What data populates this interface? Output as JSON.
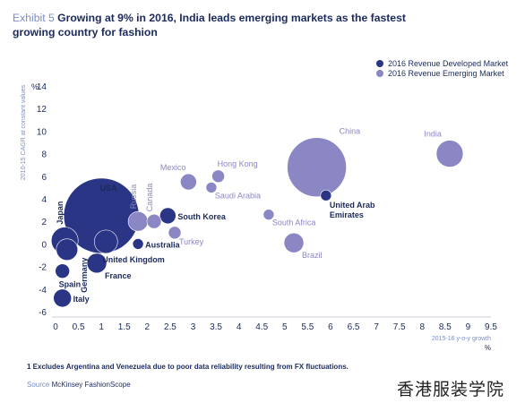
{
  "header": {
    "exhibit": "Exhibit 5",
    "title": "Growing at 9% in 2016, India leads emerging markets as the fastest growing country for fashion"
  },
  "colors": {
    "developed": "#2a3585",
    "emerging": "#8b86c4",
    "axis_text": "#1b2a5c"
  },
  "chart_data": {
    "type": "scatter",
    "xlabel": "2015-16 y-o-y growth",
    "xunit": "%",
    "ylabel": "2010-15 CAGR at constant values",
    "yunit": "%",
    "xlim": [
      0,
      9.5
    ],
    "ylim": [
      -6,
      14
    ],
    "x_ticks": [
      "0",
      "0.5",
      "1",
      "1.5",
      "2",
      "2.5",
      "3",
      "3.5",
      "4",
      "4.5",
      "5",
      "5.5",
      "6",
      "6.5",
      "7",
      "7.5",
      "8",
      "8.5",
      "9",
      "9.5"
    ],
    "y_ticks": [
      "14",
      "12",
      "10",
      "8",
      "6",
      "4",
      "2",
      "0",
      "-2",
      "-4",
      "-6"
    ],
    "legend": {
      "position": "top-right",
      "items": [
        {
          "label": "2016 Revenue Developed Market",
          "group": "developed"
        },
        {
          "label": "2016 Revenue Emerging Market",
          "group": "emerging"
        }
      ]
    },
    "points": [
      {
        "label": "USA",
        "x": 1.0,
        "y": 2.5,
        "size": 42,
        "group": "developed",
        "label_pos": "above"
      },
      {
        "label": "Japan",
        "x": 0.2,
        "y": 0.3,
        "size": 15,
        "group": "developed",
        "label_pos": "vertical"
      },
      {
        "label": "Germany",
        "x": 0.25,
        "y": -0.5,
        "size": 12,
        "group": "developed",
        "label_pos": "vertical-below"
      },
      {
        "label": "United Kingdom",
        "x": 1.1,
        "y": 0.2,
        "size": 13,
        "group": "developed",
        "label_pos": "below"
      },
      {
        "label": "France",
        "x": 0.9,
        "y": -1.7,
        "size": 11,
        "group": "developed",
        "label_pos": "below-right"
      },
      {
        "label": "Spain",
        "x": 0.15,
        "y": -2.4,
        "size": 8,
        "group": "developed",
        "label_pos": "below"
      },
      {
        "label": "Italy",
        "x": 0.15,
        "y": -4.8,
        "size": 10,
        "group": "developed",
        "label_pos": "right"
      },
      {
        "label": "Australia",
        "x": 1.8,
        "y": 0.0,
        "size": 6,
        "group": "developed",
        "label_pos": "right"
      },
      {
        "label": "South Korea",
        "x": 2.45,
        "y": 2.5,
        "size": 9,
        "group": "developed",
        "label_pos": "right"
      },
      {
        "label": "United Arab Emirates",
        "x": 5.9,
        "y": 4.3,
        "size": 6,
        "group": "developed",
        "label_pos": "below-right"
      },
      {
        "label": "Russia",
        "x": 1.8,
        "y": 2.0,
        "size": 11,
        "group": "emerging",
        "label_pos": "vertical"
      },
      {
        "label": "Canada",
        "x": 2.15,
        "y": 2.0,
        "size": 8,
        "group": "emerging",
        "label_pos": "vertical"
      },
      {
        "label": "Turkey",
        "x": 2.6,
        "y": 1.0,
        "size": 7,
        "group": "emerging",
        "label_pos": "below-right"
      },
      {
        "label": "Mexico",
        "x": 2.9,
        "y": 5.5,
        "size": 9,
        "group": "emerging",
        "label_pos": "above-left"
      },
      {
        "label": "Hong Kong",
        "x": 3.55,
        "y": 6.0,
        "size": 7,
        "group": "emerging",
        "label_pos": "above-right"
      },
      {
        "label": "Saudi Arabia",
        "x": 3.4,
        "y": 5.0,
        "size": 6,
        "group": "emerging",
        "label_pos": "below-right"
      },
      {
        "label": "South Africa",
        "x": 4.65,
        "y": 2.6,
        "size": 6,
        "group": "emerging",
        "label_pos": "below-right"
      },
      {
        "label": "Brazil",
        "x": 5.2,
        "y": 0.1,
        "size": 11,
        "group": "emerging",
        "label_pos": "below-right"
      },
      {
        "label": "China",
        "x": 5.7,
        "y": 6.8,
        "size": 33,
        "group": "emerging",
        "label_pos": "above-right"
      },
      {
        "label": "India",
        "x": 8.6,
        "y": 8.0,
        "size": 15,
        "group": "emerging",
        "label_pos": "above-left"
      }
    ]
  },
  "footnote": "1 Excludes Argentina and Venezuela due to poor data reliability resulting from FX fluctuations.",
  "source": {
    "label": "Source",
    "text": "McKinsey FashionScope"
  },
  "watermark": "香港服装学院"
}
